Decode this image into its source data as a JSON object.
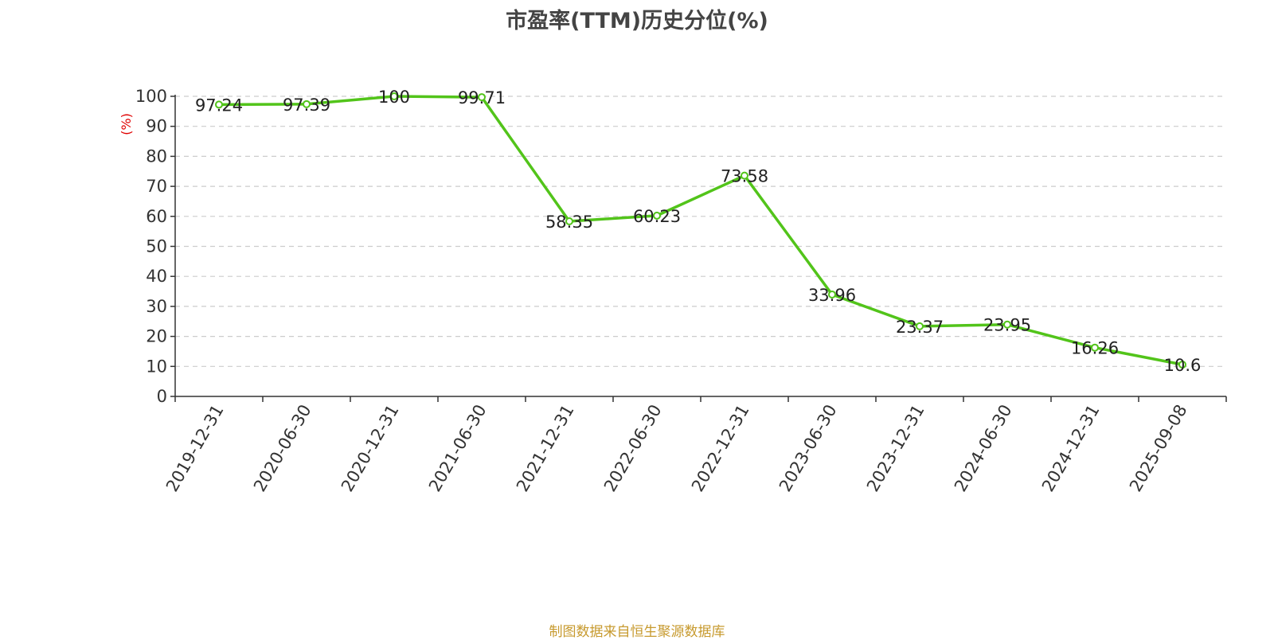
{
  "chart_data": {
    "type": "line",
    "title": "市盈率(TTM)历史分位(%)",
    "ylabel": "(%)",
    "xlabel": "",
    "ylim": [
      0,
      100
    ],
    "yticks": [
      0,
      10,
      20,
      30,
      40,
      50,
      60,
      70,
      80,
      90,
      100
    ],
    "grid": true,
    "categories": [
      "2019-12-31",
      "2020-06-30",
      "2020-12-31",
      "2021-06-30",
      "2021-12-31",
      "2022-06-30",
      "2022-12-31",
      "2023-06-30",
      "2023-12-31",
      "2024-06-30",
      "2024-12-31",
      "2025-09-08"
    ],
    "values": [
      97.24,
      97.39,
      100,
      99.71,
      58.35,
      60.23,
      73.58,
      33.96,
      23.37,
      23.95,
      16.26,
      10.6
    ],
    "line_color": "#52c41a"
  },
  "source_note": "制图数据来自恒生聚源数据库"
}
